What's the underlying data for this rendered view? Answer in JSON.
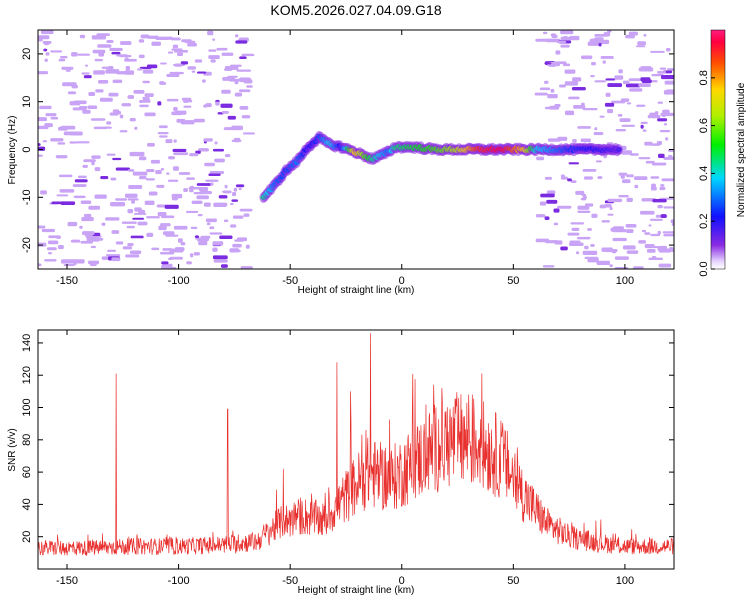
{
  "title": "KOM5.2026.027.04.09.G18",
  "colors": {
    "trace": "#e8302e",
    "noise": "#c9a3f5",
    "noise_dark": "#7b2be0",
    "axis": "#000000"
  },
  "chart_data": [
    {
      "type": "heatmap",
      "xlabel": "Height of straight line (km)",
      "ylabel": "Frequency (Hz)",
      "xlim": [
        -163,
        122
      ],
      "ylim": [
        -25,
        25
      ],
      "xticks": [
        -150,
        -100,
        -50,
        0,
        50,
        100
      ],
      "yticks": [
        -20,
        -10,
        0,
        10,
        20
      ],
      "colorbar": {
        "label": "Normalized spectral amplitude",
        "range": [
          0,
          1
        ],
        "ticks": [
          "0.0",
          "0.2",
          "0.4",
          "0.6",
          "0.8"
        ]
      },
      "signal_track": {
        "description": "Doppler frequency of the signal vs height",
        "points": [
          {
            "x": -62,
            "y": -10,
            "amp": 0.45
          },
          {
            "x": -57,
            "y": -7.5,
            "amp": 0.3
          },
          {
            "x": -52,
            "y": -4.5,
            "amp": 0.25
          },
          {
            "x": -47,
            "y": -2.5,
            "amp": 0.3
          },
          {
            "x": -42,
            "y": 0.5,
            "amp": 0.2
          },
          {
            "x": -37,
            "y": 2.5,
            "amp": 0.25
          },
          {
            "x": -32,
            "y": 1.0,
            "amp": 0.4
          },
          {
            "x": -27,
            "y": 0.5,
            "amp": 0.2
          },
          {
            "x": -21,
            "y": -0.5,
            "amp": 0.75
          },
          {
            "x": -13,
            "y": -2.0,
            "amp": 0.45
          },
          {
            "x": -6,
            "y": -0.5,
            "amp": 0.3
          },
          {
            "x": -3,
            "y": 0.5,
            "amp": 0.45
          },
          {
            "x": 5,
            "y": 0.5,
            "amp": 0.5
          },
          {
            "x": 15,
            "y": 0.0,
            "amp": 0.55
          },
          {
            "x": 25,
            "y": 0.0,
            "amp": 0.65
          },
          {
            "x": 35,
            "y": 0.0,
            "amp": 0.9
          },
          {
            "x": 45,
            "y": 0.0,
            "amp": 0.95
          },
          {
            "x": 55,
            "y": 0.0,
            "amp": 0.75
          },
          {
            "x": 60,
            "y": 0.0,
            "amp": 0.4
          },
          {
            "x": 75,
            "y": 0.0,
            "amp": 0.25
          },
          {
            "x": 90,
            "y": 0.0,
            "amp": 0.2
          },
          {
            "x": 98,
            "y": 0.0,
            "amp": 0.15
          }
        ],
        "noise_regions": [
          [
            -163,
            -68
          ],
          [
            62,
            122
          ]
        ]
      }
    },
    {
      "type": "line",
      "xlabel": "Height of straight line (km)",
      "ylabel": "SNR (v/v)",
      "xlim": [
        -163,
        122
      ],
      "ylim": [
        0,
        148
      ],
      "xticks": [
        -150,
        -100,
        -50,
        0,
        50,
        100
      ],
      "yticks": [
        20,
        40,
        60,
        80,
        100,
        120,
        140
      ],
      "envelope": {
        "description": "Approximate mean SNR vs height (noisy trace)",
        "x": [
          -163,
          -140,
          -120,
          -100,
          -80,
          -65,
          -55,
          -45,
          -35,
          -25,
          -15,
          -5,
          5,
          15,
          25,
          35,
          45,
          55,
          65,
          75,
          85,
          100,
          115,
          122
        ],
        "y": [
          13,
          13,
          14,
          14,
          15,
          17,
          28,
          33,
          30,
          45,
          60,
          55,
          65,
          75,
          80,
          78,
          68,
          45,
          28,
          20,
          17,
          14,
          14,
          14
        ]
      },
      "spikes": [
        {
          "x": -128,
          "y": 121
        },
        {
          "x": -78,
          "y": 99
        },
        {
          "x": -53,
          "y": 62
        },
        {
          "x": -29,
          "y": 128
        },
        {
          "x": -23,
          "y": 110
        },
        {
          "x": -14,
          "y": 146
        },
        {
          "x": 18,
          "y": 112
        },
        {
          "x": 30,
          "y": 108
        }
      ]
    }
  ]
}
